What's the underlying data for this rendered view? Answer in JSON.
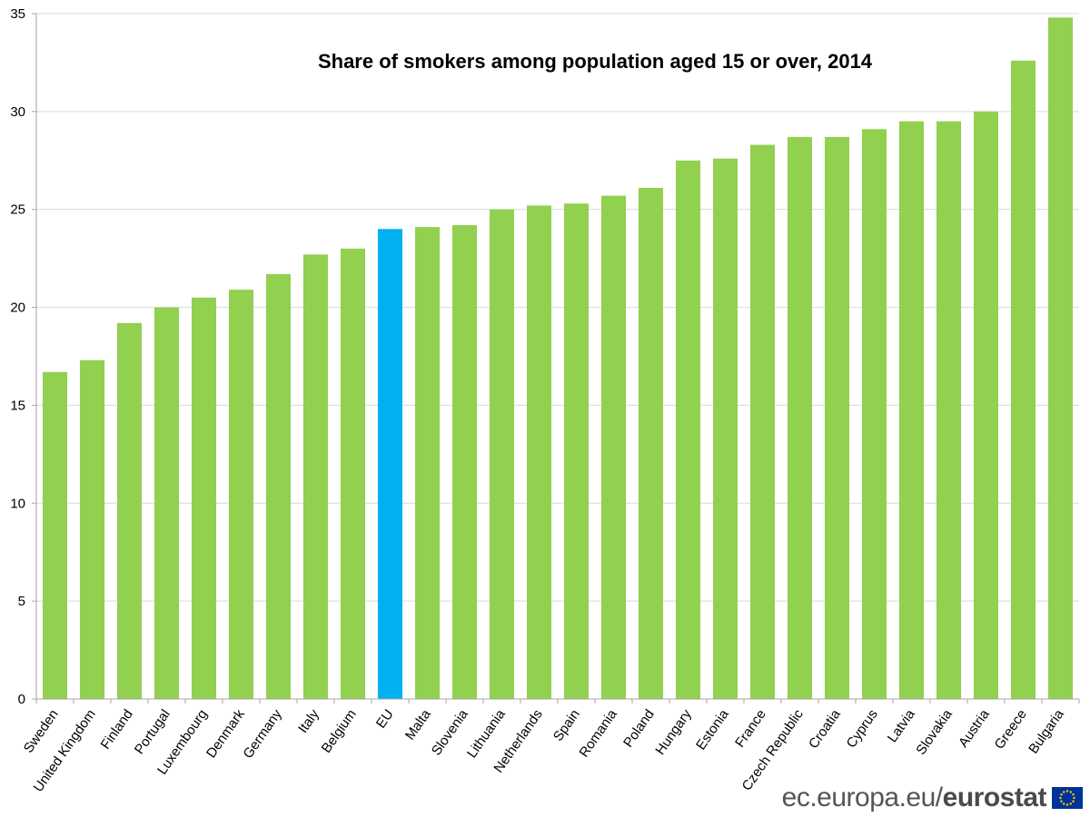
{
  "chart_data": {
    "type": "bar",
    "title": "Share of smokers among population aged 15 or over, 2014",
    "categories": [
      "Sweden",
      "United Kingdom",
      "Finland",
      "Portugal",
      "Luxembourg",
      "Denmark",
      "Germany",
      "Italy",
      "Belgium",
      "EU",
      "Malta",
      "Slovenia",
      "Lithuania",
      "Netherlands",
      "Spain",
      "Romania",
      "Poland",
      "Hungary",
      "Estonia",
      "France",
      "Czech Republic",
      "Croatia",
      "Cyprus",
      "Latvia",
      "Slovakia",
      "Austria",
      "Greece",
      "Bulgaria"
    ],
    "values": [
      16.7,
      17.3,
      19.2,
      20.0,
      20.5,
      20.9,
      21.7,
      22.7,
      23.0,
      24.0,
      24.1,
      24.2,
      25.0,
      25.2,
      25.3,
      25.7,
      26.1,
      27.5,
      27.6,
      28.3,
      28.7,
      28.7,
      29.1,
      29.5,
      29.5,
      30.0,
      32.6,
      34.8
    ],
    "highlight": "EU",
    "ylim": [
      0,
      35
    ],
    "yticks": [
      0,
      5,
      10,
      15,
      20,
      25,
      30,
      35
    ],
    "grid": true,
    "colors": {
      "bar": "#92D050",
      "highlight": "#00B0F0",
      "grid": "#D9D9D9",
      "axis": "#A6A6A6"
    }
  },
  "branding": {
    "site": "ec.europa.eu/",
    "name": "eurostat",
    "flag_icon": "eu-flag-icon"
  }
}
